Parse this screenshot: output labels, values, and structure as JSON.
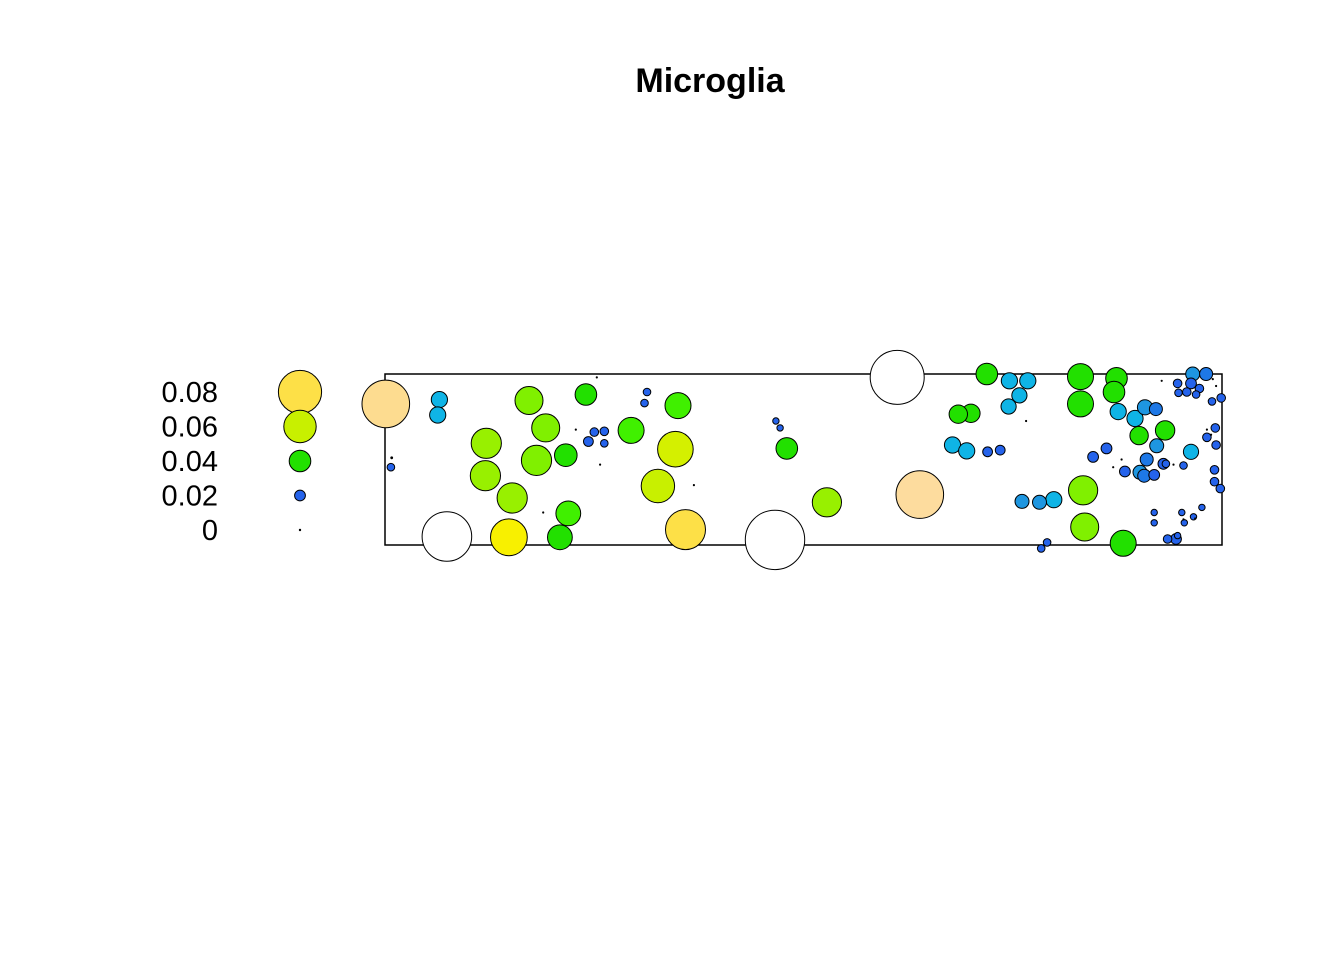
{
  "chart_data": {
    "type": "scatter",
    "title": "Microglia",
    "legend": {
      "position": "left",
      "entries": [
        {
          "label": "0.08",
          "value": 0.08,
          "color": "#fde047"
        },
        {
          "label": "0.06",
          "value": 0.06,
          "color": "#c8f000"
        },
        {
          "label": "0.04",
          "value": 0.04,
          "color": "#22e000"
        },
        {
          "label": "0.02",
          "value": 0.02,
          "color": "#2563eb"
        },
        {
          "label": "0",
          "value": 0,
          "color": "#000000"
        }
      ]
    },
    "xlim": [
      0,
      100
    ],
    "ylim": [
      0,
      20
    ],
    "grid": false,
    "points": [
      {
        "x": 0.1,
        "y": 16.5,
        "v": 0.088,
        "c": "#fddc90"
      },
      {
        "x": 7.4,
        "y": 1.0,
        "v": 0.092,
        "c": "#ffffff"
      },
      {
        "x": 46.6,
        "y": 0.6,
        "v": 0.11,
        "c": "#ffffff"
      },
      {
        "x": 61.2,
        "y": 19.6,
        "v": 0.1,
        "c": "#ffffff"
      },
      {
        "x": 63.9,
        "y": 5.9,
        "v": 0.088,
        "c": "#fddc9e"
      },
      {
        "x": 14.8,
        "y": 0.9,
        "v": 0.068,
        "c": "#f8f000"
      },
      {
        "x": 35.9,
        "y": 1.8,
        "v": 0.074,
        "c": "#fde047"
      },
      {
        "x": 34.7,
        "y": 11.2,
        "v": 0.066,
        "c": "#d4f000"
      },
      {
        "x": 32.6,
        "y": 6.9,
        "v": 0.062,
        "c": "#c8f000"
      },
      {
        "x": 12.1,
        "y": 11.9,
        "v": 0.056,
        "c": "#98f000"
      },
      {
        "x": 12.0,
        "y": 8.1,
        "v": 0.056,
        "c": "#98f000"
      },
      {
        "x": 15.2,
        "y": 5.5,
        "v": 0.056,
        "c": "#98f000"
      },
      {
        "x": 18.1,
        "y": 9.9,
        "v": 0.056,
        "c": "#80f000"
      },
      {
        "x": 17.2,
        "y": 16.9,
        "v": 0.052,
        "c": "#80f000"
      },
      {
        "x": 19.2,
        "y": 13.7,
        "v": 0.052,
        "c": "#80f000"
      },
      {
        "x": 52.8,
        "y": 5.0,
        "v": 0.054,
        "c": "#98f000"
      },
      {
        "x": 83.4,
        "y": 6.4,
        "v": 0.054,
        "c": "#80f000"
      },
      {
        "x": 83.6,
        "y": 2.1,
        "v": 0.052,
        "c": "#80f000"
      },
      {
        "x": 29.4,
        "y": 13.4,
        "v": 0.048,
        "c": "#40f000"
      },
      {
        "x": 35.0,
        "y": 16.3,
        "v": 0.048,
        "c": "#40f000"
      },
      {
        "x": 83.1,
        "y": 16.5,
        "v": 0.048,
        "c": "#22e000"
      },
      {
        "x": 83.1,
        "y": 19.7,
        "v": 0.048,
        "c": "#22e000"
      },
      {
        "x": 88.2,
        "y": 0.2,
        "v": 0.048,
        "c": "#22e000"
      },
      {
        "x": 21.9,
        "y": 3.7,
        "v": 0.046,
        "c": "#40f000"
      },
      {
        "x": 20.9,
        "y": 0.9,
        "v": 0.046,
        "c": "#22e000"
      },
      {
        "x": 21.6,
        "y": 10.5,
        "v": 0.042,
        "c": "#22e000"
      },
      {
        "x": 24.0,
        "y": 17.6,
        "v": 0.04,
        "c": "#22e000"
      },
      {
        "x": 48.0,
        "y": 11.3,
        "v": 0.04,
        "c": "#22e000"
      },
      {
        "x": 71.9,
        "y": 20.0,
        "v": 0.04,
        "c": "#22e000"
      },
      {
        "x": 87.4,
        "y": 19.5,
        "v": 0.04,
        "c": "#22e000"
      },
      {
        "x": 87.1,
        "y": 17.9,
        "v": 0.04,
        "c": "#22e000"
      },
      {
        "x": 93.2,
        "y": 13.4,
        "v": 0.036,
        "c": "#22e000"
      },
      {
        "x": 70.0,
        "y": 15.4,
        "v": 0.034,
        "c": "#22e000"
      },
      {
        "x": 68.5,
        "y": 15.3,
        "v": 0.034,
        "c": "#22e000"
      },
      {
        "x": 90.1,
        "y": 12.8,
        "v": 0.034,
        "c": "#22e000"
      },
      {
        "x": 6.5,
        "y": 17.0,
        "v": 0.03,
        "c": "#0fb4e6"
      },
      {
        "x": 6.3,
        "y": 15.2,
        "v": 0.03,
        "c": "#0fb4e6"
      },
      {
        "x": 74.6,
        "y": 19.2,
        "v": 0.03,
        "c": "#0fb4e6"
      },
      {
        "x": 76.8,
        "y": 19.2,
        "v": 0.03,
        "c": "#0fb4e6"
      },
      {
        "x": 75.8,
        "y": 17.5,
        "v": 0.028,
        "c": "#0fb4e6"
      },
      {
        "x": 74.5,
        "y": 16.2,
        "v": 0.028,
        "c": "#0fb4e6"
      },
      {
        "x": 67.8,
        "y": 11.7,
        "v": 0.03,
        "c": "#0fb4e6"
      },
      {
        "x": 69.5,
        "y": 11.0,
        "v": 0.03,
        "c": "#0fb4e6"
      },
      {
        "x": 79.9,
        "y": 5.3,
        "v": 0.03,
        "c": "#0fb4e6"
      },
      {
        "x": 87.6,
        "y": 15.6,
        "v": 0.03,
        "c": "#0fb4e6"
      },
      {
        "x": 89.6,
        "y": 14.8,
        "v": 0.03,
        "c": "#0fb4e6"
      },
      {
        "x": 96.3,
        "y": 10.9,
        "v": 0.028,
        "c": "#0fb4e6"
      },
      {
        "x": 90.8,
        "y": 16.1,
        "v": 0.028,
        "c": "#1e96e0"
      },
      {
        "x": 96.5,
        "y": 20.0,
        "v": 0.026,
        "c": "#1e96e0"
      },
      {
        "x": 78.2,
        "y": 5.0,
        "v": 0.026,
        "c": "#1e96e0"
      },
      {
        "x": 76.1,
        "y": 5.1,
        "v": 0.026,
        "c": "#1e96e0"
      },
      {
        "x": 92.2,
        "y": 11.6,
        "v": 0.026,
        "c": "#1e96e0"
      },
      {
        "x": 90.2,
        "y": 8.5,
        "v": 0.026,
        "c": "#1e96e0"
      },
      {
        "x": 98.1,
        "y": 20.0,
        "v": 0.024,
        "c": "#1e78e6"
      },
      {
        "x": 92.1,
        "y": 15.9,
        "v": 0.024,
        "c": "#1e78e6"
      },
      {
        "x": 91.0,
        "y": 10.0,
        "v": 0.024,
        "c": "#1e78e6"
      },
      {
        "x": 90.7,
        "y": 8.1,
        "v": 0.024,
        "c": "#1e78e6"
      },
      {
        "x": 96.3,
        "y": 18.9,
        "v": 0.02,
        "c": "#2563eb"
      },
      {
        "x": 93.0,
        "y": 9.5,
        "v": 0.02,
        "c": "#2563eb"
      },
      {
        "x": 91.9,
        "y": 8.2,
        "v": 0.02,
        "c": "#2563eb"
      },
      {
        "x": 88.4,
        "y": 8.6,
        "v": 0.02,
        "c": "#2563eb"
      },
      {
        "x": 84.6,
        "y": 10.3,
        "v": 0.02,
        "c": "#2563eb"
      },
      {
        "x": 86.2,
        "y": 11.3,
        "v": 0.02,
        "c": "#2563eb"
      },
      {
        "x": 94.5,
        "y": 0.7,
        "v": 0.02,
        "c": "#2563eb"
      },
      {
        "x": 72.0,
        "y": 10.9,
        "v": 0.018,
        "c": "#2563eb"
      },
      {
        "x": 73.5,
        "y": 11.1,
        "v": 0.018,
        "c": "#2563eb"
      },
      {
        "x": 24.3,
        "y": 12.1,
        "v": 0.018,
        "c": "#2563eb"
      },
      {
        "x": 25.0,
        "y": 13.2,
        "v": 0.016,
        "c": "#2563eb"
      },
      {
        "x": 26.2,
        "y": 13.3,
        "v": 0.016,
        "c": "#2563eb"
      },
      {
        "x": 26.2,
        "y": 11.9,
        "v": 0.014,
        "c": "#2563eb"
      },
      {
        "x": 31.3,
        "y": 17.9,
        "v": 0.014,
        "c": "#2563eb"
      },
      {
        "x": 31.0,
        "y": 16.6,
        "v": 0.014,
        "c": "#2563eb"
      },
      {
        "x": 0.7,
        "y": 9.1,
        "v": 0.014,
        "c": "#2563eb"
      },
      {
        "x": 46.7,
        "y": 14.5,
        "v": 0.012,
        "c": "#2563eb"
      },
      {
        "x": 47.2,
        "y": 13.7,
        "v": 0.012,
        "c": "#2563eb"
      },
      {
        "x": 79.1,
        "y": 0.3,
        "v": 0.014,
        "c": "#2563eb"
      },
      {
        "x": 78.4,
        "y": -0.4,
        "v": 0.014,
        "c": "#2563eb"
      },
      {
        "x": 94.7,
        "y": 18.9,
        "v": 0.016,
        "c": "#2563eb"
      },
      {
        "x": 97.3,
        "y": 18.3,
        "v": 0.016,
        "c": "#2563eb"
      },
      {
        "x": 95.8,
        "y": 17.9,
        "v": 0.016,
        "c": "#2563eb"
      },
      {
        "x": 94.8,
        "y": 17.8,
        "v": 0.014,
        "c": "#2563eb"
      },
      {
        "x": 96.9,
        "y": 17.6,
        "v": 0.014,
        "c": "#2563eb"
      },
      {
        "x": 98.8,
        "y": 16.8,
        "v": 0.014,
        "c": "#2563eb"
      },
      {
        "x": 99.9,
        "y": 17.2,
        "v": 0.016,
        "c": "#2563eb"
      },
      {
        "x": 99.2,
        "y": 13.7,
        "v": 0.016,
        "c": "#2563eb"
      },
      {
        "x": 98.2,
        "y": 12.6,
        "v": 0.016,
        "c": "#2563eb"
      },
      {
        "x": 99.3,
        "y": 11.7,
        "v": 0.016,
        "c": "#2563eb"
      },
      {
        "x": 99.1,
        "y": 8.8,
        "v": 0.016,
        "c": "#2563eb"
      },
      {
        "x": 99.1,
        "y": 7.4,
        "v": 0.016,
        "c": "#2563eb"
      },
      {
        "x": 99.8,
        "y": 6.6,
        "v": 0.016,
        "c": "#2563eb"
      },
      {
        "x": 97.6,
        "y": 4.4,
        "v": 0.012,
        "c": "#2563eb"
      },
      {
        "x": 96.6,
        "y": 3.3,
        "v": 0.012,
        "c": "#2563eb"
      },
      {
        "x": 95.5,
        "y": 2.6,
        "v": 0.012,
        "c": "#2563eb"
      },
      {
        "x": 94.7,
        "y": 1.1,
        "v": 0.012,
        "c": "#2563eb"
      },
      {
        "x": 95.2,
        "y": 3.8,
        "v": 0.012,
        "c": "#2563eb"
      },
      {
        "x": 91.9,
        "y": 3.8,
        "v": 0.012,
        "c": "#2563eb"
      },
      {
        "x": 91.9,
        "y": 2.6,
        "v": 0.012,
        "c": "#2563eb"
      },
      {
        "x": 93.5,
        "y": 0.7,
        "v": 0.016,
        "c": "#2563eb"
      },
      {
        "x": 93.3,
        "y": 9.5,
        "v": 0.014,
        "c": "#2563eb"
      },
      {
        "x": 95.4,
        "y": 9.3,
        "v": 0.014,
        "c": "#2563eb"
      },
      {
        "x": 0.8,
        "y": 10.2,
        "v": 0.004,
        "c": "#000000"
      },
      {
        "x": 25.3,
        "y": 19.6,
        "v": 0.003,
        "c": "#000000"
      },
      {
        "x": 22.8,
        "y": 13.5,
        "v": 0.003,
        "c": "#000000"
      },
      {
        "x": 25.7,
        "y": 9.4,
        "v": 0.003,
        "c": "#000000"
      },
      {
        "x": 18.9,
        "y": 3.8,
        "v": 0.003,
        "c": "#000000"
      },
      {
        "x": 36.9,
        "y": 7.0,
        "v": 0.003,
        "c": "#000000"
      },
      {
        "x": 76.6,
        "y": 14.5,
        "v": 0.003,
        "c": "#000000"
      },
      {
        "x": 88.0,
        "y": 10.0,
        "v": 0.003,
        "c": "#000000"
      },
      {
        "x": 87.0,
        "y": 9.1,
        "v": 0.003,
        "c": "#000000"
      },
      {
        "x": 92.8,
        "y": 19.2,
        "v": 0.003,
        "c": "#000000"
      },
      {
        "x": 99.3,
        "y": 18.6,
        "v": 0.003,
        "c": "#000000"
      },
      {
        "x": 98.2,
        "y": 13.5,
        "v": 0.003,
        "c": "#000000"
      },
      {
        "x": 98.7,
        "y": 12.9,
        "v": 0.003,
        "c": "#000000"
      },
      {
        "x": 94.2,
        "y": 9.4,
        "v": 0.003,
        "c": "#000000"
      },
      {
        "x": 95.4,
        "y": 3.0,
        "v": 0.003,
        "c": "#000000"
      },
      {
        "x": 96.8,
        "y": 3.1,
        "v": 0.003,
        "c": "#000000"
      },
      {
        "x": 98.9,
        "y": 19.4,
        "v": 0.003,
        "c": "#000000"
      }
    ]
  }
}
